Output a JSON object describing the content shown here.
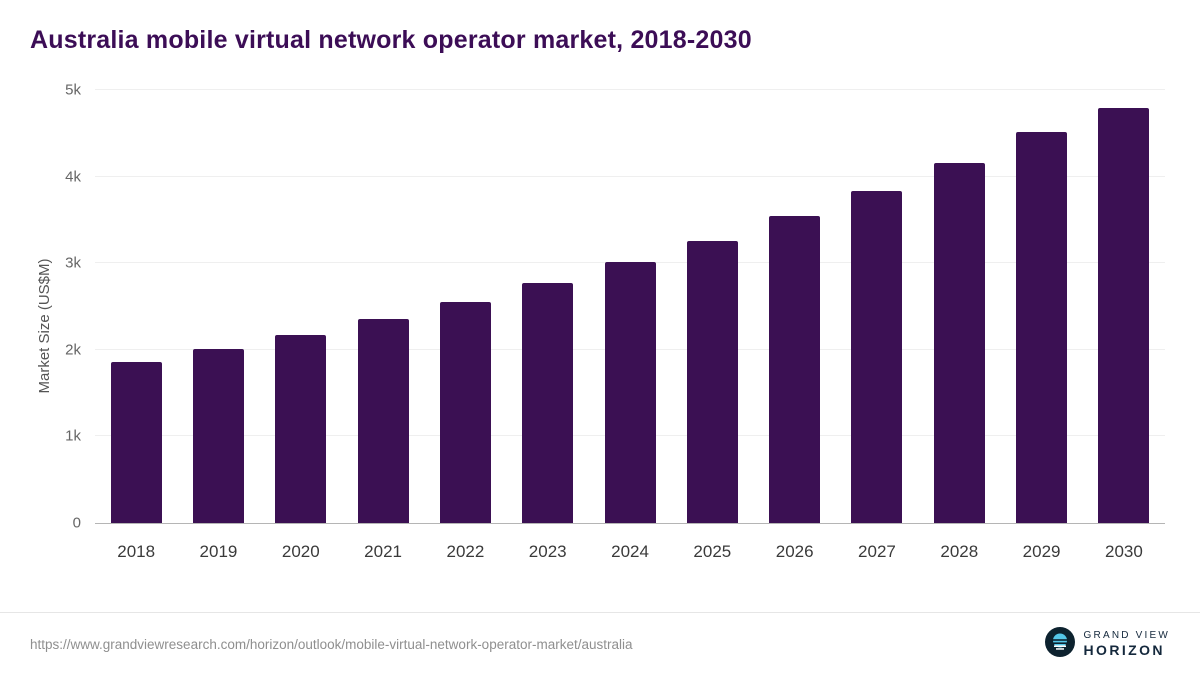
{
  "title": "Australia mobile virtual network operator market, 2018-2030",
  "chart_data": {
    "type": "bar",
    "title": "Australia mobile virtual network operator market, 2018-2030",
    "categories": [
      "2018",
      "2019",
      "2020",
      "2021",
      "2022",
      "2023",
      "2024",
      "2025",
      "2026",
      "2027",
      "2028",
      "2029",
      "2030"
    ],
    "values": [
      1860,
      2010,
      2170,
      2355,
      2555,
      2770,
      3010,
      3255,
      3540,
      3835,
      4155,
      4515,
      4795
    ],
    "xlabel": "",
    "ylabel": "Market Size (US$M)",
    "ylim": [
      0,
      5000
    ],
    "yticks": [
      {
        "value": 0,
        "label": "0"
      },
      {
        "value": 1000,
        "label": "1k"
      },
      {
        "value": 2000,
        "label": "2k"
      },
      {
        "value": 3000,
        "label": "3k"
      },
      {
        "value": 4000,
        "label": "4k"
      },
      {
        "value": 5000,
        "label": "5k"
      }
    ],
    "grid": true,
    "legend": "none",
    "bar_color": "#3b1053",
    "title_color": "#3c0d56"
  },
  "footer": {
    "source_url": "https://www.grandviewresearch.com/horizon/outlook/mobile-virtual-network-operator-market/australia",
    "logo": {
      "line1": "GRAND VIEW",
      "line2": "HORIZON",
      "icon": "horizon-sun-over-water-icon",
      "icon_bg": "#0d222f",
      "icon_accent": "#55c6e8"
    }
  }
}
